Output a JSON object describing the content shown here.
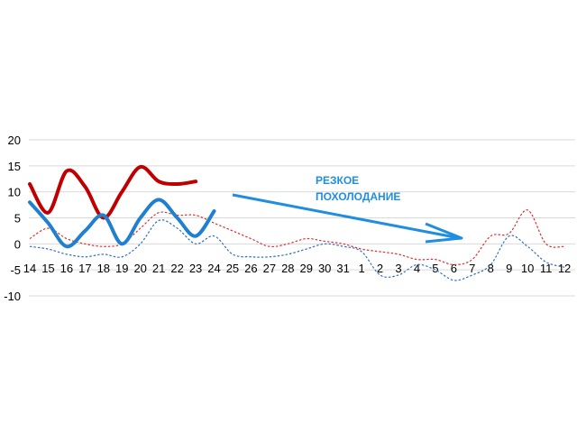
{
  "chart_data": {
    "type": "line",
    "ylim": [
      -10,
      20
    ],
    "y_ticks": [
      "20",
      "15",
      "10",
      "5",
      "0",
      "-5",
      "-10"
    ],
    "x_ticks": [
      "14",
      "15",
      "16",
      "17",
      "18",
      "19",
      "20",
      "21",
      "22",
      "23",
      "24",
      "25",
      "26",
      "27",
      "28",
      "29",
      "30",
      "31",
      "1",
      "2",
      "3",
      "4",
      "5",
      "6",
      "7",
      "8",
      "9",
      "10",
      "11",
      "12"
    ],
    "grid": "horizontal",
    "legend": "none",
    "annotation": {
      "lines": [
        "РЕЗКОЕ",
        "ПОХОЛОДАНИЕ"
      ],
      "color": "#1f8ee0"
    },
    "series": [
      {
        "style": "thick-solid",
        "color": "#c00000",
        "values": [
          11.5,
          6,
          14,
          11,
          5,
          10,
          14.8,
          12,
          11.5,
          12,
          null,
          null,
          null,
          null,
          null,
          null,
          null,
          null,
          null,
          null,
          null,
          null,
          null,
          null,
          null,
          null,
          null,
          null,
          null,
          null
        ]
      },
      {
        "style": "thick-solid",
        "color": "#1f7fd0",
        "values": [
          8,
          4,
          -0.5,
          2.5,
          5.5,
          0,
          5,
          8.5,
          5,
          1.5,
          6.3,
          null,
          null,
          null,
          null,
          null,
          null,
          null,
          null,
          null,
          null,
          null,
          null,
          null,
          null,
          null,
          null,
          null,
          null,
          null
        ]
      },
      {
        "style": "dotted",
        "color": "#e03030",
        "values": [
          1,
          3,
          1,
          0,
          -0.5,
          0,
          3,
          6,
          5.5,
          5.5,
          4,
          2.5,
          1,
          -0.5,
          0,
          1,
          0.5,
          0,
          -1,
          -1.5,
          -2,
          -3,
          -3,
          -4,
          -3,
          1.5,
          2,
          6.5,
          0,
          -0.5
        ]
      },
      {
        "style": "dotted",
        "color": "#3070c0",
        "values": [
          -0.5,
          -1,
          -2,
          -2.5,
          -2,
          -2.5,
          0,
          4.5,
          3,
          0,
          1.5,
          -2,
          -2.5,
          -2.5,
          -2,
          -1,
          0,
          -0.5,
          -1.5,
          -6,
          -6,
          -4,
          -5,
          -7,
          -6,
          -4,
          1.5,
          -0.5,
          -3.5,
          -4.5
        ]
      }
    ]
  }
}
